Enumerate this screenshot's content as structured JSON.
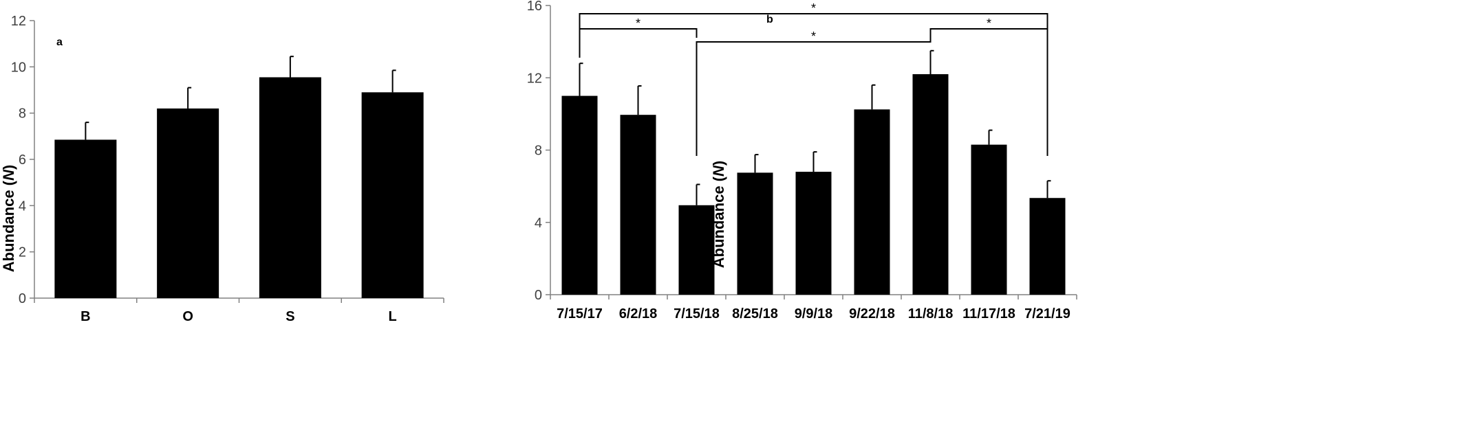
{
  "chart_data": [
    {
      "type": "bar",
      "panel_label": "a",
      "ylabel": "Abundance (N)",
      "ylabel_prefix": "Abundance (",
      "ylabel_italic": "N",
      "ylabel_suffix": ")",
      "ylim": [
        0,
        12
      ],
      "yticks": [
        0,
        2,
        4,
        6,
        8,
        10,
        12
      ],
      "categories": [
        "B",
        "O",
        "S",
        "L"
      ],
      "values": [
        6.85,
        8.2,
        9.55,
        8.9
      ],
      "errors": [
        0.75,
        0.9,
        0.9,
        0.95
      ],
      "grid": false,
      "legend": "none"
    },
    {
      "type": "bar",
      "panel_label": "b",
      "ylabel": "Abundance (N)",
      "ylabel_prefix": "Abundance (",
      "ylabel_italic": "N",
      "ylabel_suffix": ")",
      "ylim": [
        0,
        16
      ],
      "yticks": [
        0,
        4,
        8,
        12,
        16
      ],
      "categories": [
        "7/15/17",
        "6/2/18",
        "7/15/18",
        "8/25/18",
        "9/9/18",
        "9/22/18",
        "11/8/18",
        "11/17/18",
        "7/21/19"
      ],
      "values": [
        11.0,
        9.95,
        4.95,
        6.75,
        6.8,
        10.25,
        12.2,
        8.3,
        5.35
      ],
      "errors": [
        1.8,
        1.6,
        1.15,
        1.0,
        1.1,
        1.35,
        1.3,
        0.8,
        0.95
      ],
      "grid": false,
      "legend": "none",
      "significance": [
        {
          "from": "7/15/17",
          "to": "7/21/19",
          "label": "*"
        },
        {
          "from": "7/15/17",
          "to": "7/15/18",
          "label": "*"
        },
        {
          "from": "7/15/18",
          "to": "11/8/18",
          "label": "*"
        },
        {
          "from": "11/8/18",
          "to": "7/21/19",
          "label": "*"
        }
      ]
    }
  ],
  "colors": {
    "bar": "#000000",
    "axis": "#808080",
    "bracket": "#000000"
  }
}
